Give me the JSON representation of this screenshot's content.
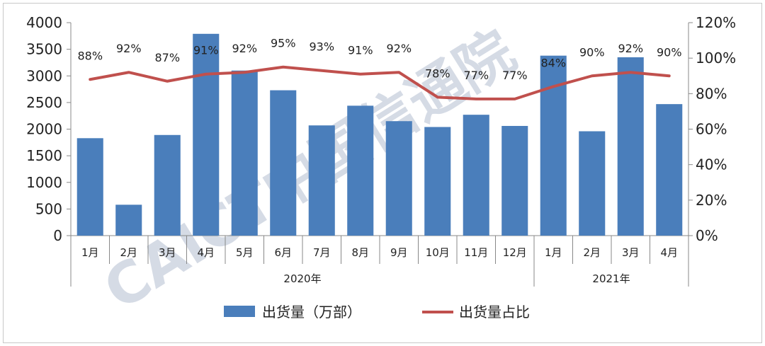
{
  "chart_data": {
    "type": "bar",
    "categories": [
      "1月",
      "2月",
      "3月",
      "4月",
      "5月",
      "6月",
      "7月",
      "8月",
      "9月",
      "10月",
      "11月",
      "12月",
      "1月",
      "2月",
      "3月",
      "4月"
    ],
    "year_groups": [
      {
        "label": "2020年",
        "count": 12
      },
      {
        "label": "2021年",
        "count": 4
      }
    ],
    "series": [
      {
        "name": "出货量（万部）",
        "type": "bar",
        "axis": "left",
        "color": "#4a7ebb",
        "values": [
          1830,
          580,
          1890,
          3790,
          3100,
          2730,
          2070,
          2440,
          2150,
          2040,
          2270,
          2060,
          3380,
          1960,
          3350,
          2470
        ]
      },
      {
        "name": "出货量占比",
        "type": "line",
        "axis": "right",
        "color": "#c0504d",
        "values": [
          88,
          92,
          87,
          91,
          92,
          95,
          93,
          91,
          92,
          78,
          77,
          77,
          84,
          90,
          92,
          90
        ],
        "labels": [
          "88%",
          "92%",
          "87%",
          "91%",
          "92%",
          "95%",
          "93%",
          "91%",
          "92%",
          "78%",
          "77%",
          "77%",
          "84%",
          "90%",
          "92%",
          "90%"
        ]
      }
    ],
    "y_left": {
      "min": 0,
      "max": 4000,
      "ticks": [
        "0",
        "500",
        "1000",
        "1500",
        "2000",
        "2500",
        "3000",
        "3500",
        "4000"
      ]
    },
    "y_right": {
      "min": 0,
      "max": 120,
      "ticks": [
        "0%",
        "20%",
        "40%",
        "60%",
        "80%",
        "100%",
        "120%"
      ]
    },
    "legend_position": "bottom",
    "grid": false
  },
  "watermark": "CAICT中国信通院"
}
